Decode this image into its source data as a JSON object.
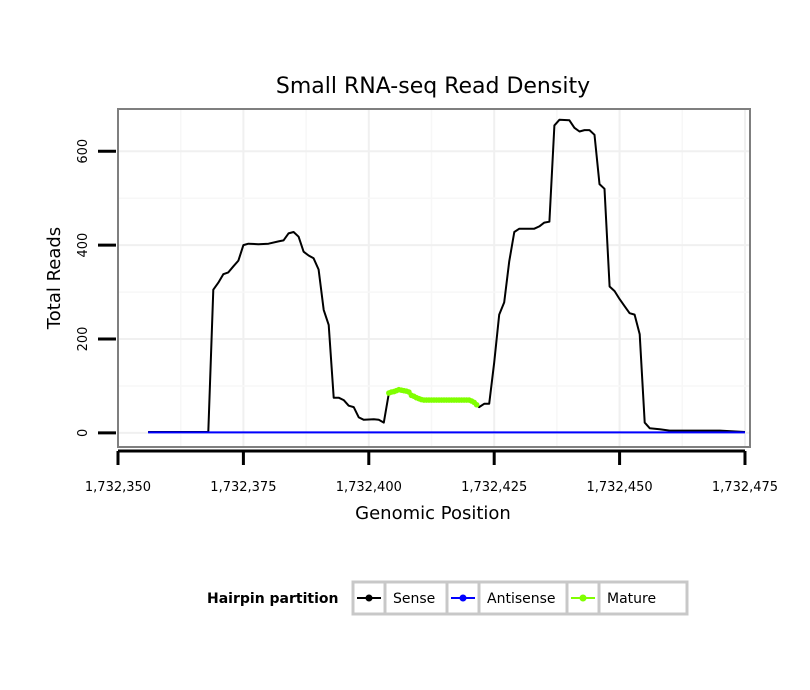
{
  "chart_data": {
    "type": "line",
    "title": "Small RNA-seq Read Density",
    "xlabel": "Genomic Position",
    "ylabel": "Total Reads",
    "xlim": [
      1732350,
      1732476
    ],
    "ylim": [
      -30,
      690
    ],
    "x_ticks": [
      1732350,
      1732375,
      1732400,
      1732425,
      1732450,
      1732475
    ],
    "x_tick_labels": [
      "1,732,350",
      "1,732,375",
      "1,732,400",
      "1,732,425",
      "1,732,450",
      "1,732,475"
    ],
    "y_ticks": [
      0,
      200,
      400,
      600
    ],
    "y_tick_labels": [
      "0",
      "200",
      "400",
      "600"
    ],
    "grid": true,
    "legend": {
      "title": "Hairpin partition",
      "position": "bottom",
      "entries": [
        "Sense",
        "Antisense",
        "Mature"
      ]
    },
    "series": [
      {
        "name": "Sense",
        "color": "#000000",
        "marker": false,
        "points": [
          [
            1732356,
            2
          ],
          [
            1732368,
            2
          ],
          [
            1732369,
            305
          ],
          [
            1732370,
            320
          ],
          [
            1732371,
            338
          ],
          [
            1732372,
            342
          ],
          [
            1732373,
            355
          ],
          [
            1732374,
            367
          ],
          [
            1732375,
            400
          ],
          [
            1732376,
            403
          ],
          [
            1732378,
            402
          ],
          [
            1732380,
            403
          ],
          [
            1732382,
            408
          ],
          [
            1732383,
            410
          ],
          [
            1732384,
            425
          ],
          [
            1732385,
            428
          ],
          [
            1732386,
            418
          ],
          [
            1732387,
            386
          ],
          [
            1732388,
            378
          ],
          [
            1732389,
            372
          ],
          [
            1732390,
            348
          ],
          [
            1732391,
            262
          ],
          [
            1732392,
            230
          ],
          [
            1732393,
            75
          ],
          [
            1732394,
            75
          ],
          [
            1732395,
            70
          ],
          [
            1732396,
            58
          ],
          [
            1732397,
            55
          ],
          [
            1732398,
            33
          ],
          [
            1732399,
            28
          ],
          [
            1732401,
            29
          ],
          [
            1732402,
            28
          ],
          [
            1732403,
            22
          ],
          [
            1732404,
            85
          ],
          [
            1732405,
            88
          ],
          [
            1732406,
            92
          ],
          [
            1732407,
            90
          ],
          [
            1732408,
            87
          ],
          [
            1732409,
            78
          ],
          [
            1732410,
            73
          ],
          [
            1732411,
            70
          ],
          [
            1732420,
            70
          ],
          [
            1732421,
            65
          ],
          [
            1732422,
            55
          ],
          [
            1732423,
            62
          ],
          [
            1732424,
            62
          ],
          [
            1732425,
            150
          ],
          [
            1732426,
            252
          ],
          [
            1732427,
            278
          ],
          [
            1732428,
            365
          ],
          [
            1732429,
            428
          ],
          [
            1732430,
            435
          ],
          [
            1732431,
            435
          ],
          [
            1732433,
            435
          ],
          [
            1732434,
            440
          ],
          [
            1732435,
            448
          ],
          [
            1732436,
            450
          ],
          [
            1732437,
            655
          ],
          [
            1732438,
            667
          ],
          [
            1732440,
            666
          ],
          [
            1732441,
            650
          ],
          [
            1732442,
            642
          ],
          [
            1732443,
            645
          ],
          [
            1732444,
            645
          ],
          [
            1732445,
            635
          ],
          [
            1732446,
            530
          ],
          [
            1732447,
            520
          ],
          [
            1732448,
            312
          ],
          [
            1732449,
            302
          ],
          [
            1732450,
            285
          ],
          [
            1732451,
            270
          ],
          [
            1732452,
            255
          ],
          [
            1732453,
            252
          ],
          [
            1732454,
            210
          ],
          [
            1732455,
            22
          ],
          [
            1732456,
            10
          ],
          [
            1732458,
            8
          ],
          [
            1732460,
            5
          ],
          [
            1732470,
            5
          ],
          [
            1732475,
            2
          ]
        ]
      },
      {
        "name": "Antisense",
        "color": "#0000ff",
        "marker": false,
        "points": [
          [
            1732356,
            1
          ],
          [
            1732475,
            1
          ]
        ]
      },
      {
        "name": "Mature",
        "color": "#80ff00",
        "marker": true,
        "points": [
          [
            1732404,
            85
          ],
          [
            1732404.5,
            87
          ],
          [
            1732405,
            88
          ],
          [
            1732405.5,
            90
          ],
          [
            1732406,
            92
          ],
          [
            1732406.5,
            91
          ],
          [
            1732407,
            90
          ],
          [
            1732407.5,
            89
          ],
          [
            1732408,
            87
          ],
          [
            1732408.5,
            80
          ],
          [
            1732409,
            78
          ],
          [
            1732409.5,
            75
          ],
          [
            1732410,
            73
          ],
          [
            1732410.5,
            71
          ],
          [
            1732411,
            70
          ],
          [
            1732411.5,
            70
          ],
          [
            1732412,
            70
          ],
          [
            1732412.5,
            70
          ],
          [
            1732413,
            70
          ],
          [
            1732413.5,
            70
          ],
          [
            1732414,
            70
          ],
          [
            1732414.5,
            70
          ],
          [
            1732415,
            70
          ],
          [
            1732415.5,
            70
          ],
          [
            1732416,
            70
          ],
          [
            1732416.5,
            70
          ],
          [
            1732417,
            70
          ],
          [
            1732417.5,
            70
          ],
          [
            1732418,
            70
          ],
          [
            1732418.5,
            70
          ],
          [
            1732419,
            70
          ],
          [
            1732419.5,
            70
          ],
          [
            1732420,
            70
          ],
          [
            1732420.5,
            68
          ],
          [
            1732421,
            65
          ],
          [
            1732421.5,
            60
          ]
        ]
      }
    ]
  }
}
